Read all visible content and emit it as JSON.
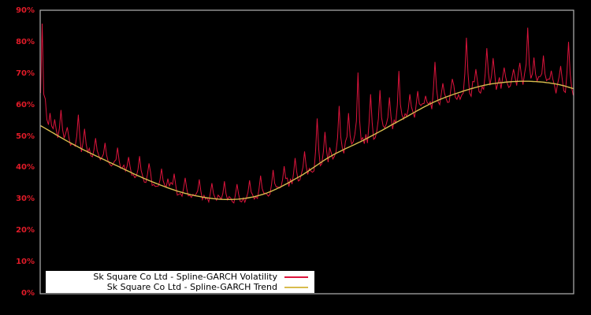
{
  "window": {
    "background_color": "#000000",
    "frame_color": "#b3b3b3"
  },
  "legend": {
    "background_color": "#ffffff",
    "items": [
      {
        "label": "Sk Square Co Ltd - Spline-GARCH Volatility",
        "color": "#dc143c"
      },
      {
        "label": "Sk Square Co Ltd - Spline-GARCH Trend",
        "color": "#d8bc4e"
      }
    ]
  },
  "chart_data": {
    "type": "line",
    "title": "",
    "xlabel": "",
    "ylabel": "",
    "x_axis": {
      "tick_labels": [],
      "range": [
        0,
        1
      ]
    },
    "y_axis": {
      "range": [
        0,
        90
      ],
      "unit": "%",
      "tick_color": "#e01b28",
      "ticks": [
        {
          "value": 0,
          "label": "0%"
        },
        {
          "value": 10,
          "label": "10%"
        },
        {
          "value": 20,
          "label": "20%"
        },
        {
          "value": 30,
          "label": "30%"
        },
        {
          "value": 40,
          "label": "40%"
        },
        {
          "value": 50,
          "label": "50%"
        },
        {
          "value": 60,
          "label": "60%"
        },
        {
          "value": 70,
          "label": "70%"
        },
        {
          "value": 80,
          "label": "80%"
        }
      ],
      "top_tick": {
        "value": 90,
        "label": "90%"
      }
    },
    "grid": "off",
    "legend_position": "bottom-left",
    "series": [
      {
        "name": "Sk Square Co Ltd - Spline-GARCH Volatility",
        "color": "#dc143c",
        "line_width": 1,
        "description": "Noisy daily volatility oscillating around the trend with frequent upward spikes; starts with a large spike near 86% and ends with spikes near 80%.",
        "noise": {
          "seed": 1337,
          "points": 340,
          "base_dev": 2.3,
          "right_dev_slope": 6.5,
          "right_dev_start": 0.52,
          "bump_prob": 0.1,
          "bias": 0.58,
          "floor_below_trend": 3.2,
          "min_value": 27.0,
          "max_value": 87.0
        },
        "spikes": [
          [
            0.0015,
            86.0
          ],
          [
            0.009,
            62.0
          ],
          [
            0.018,
            57.5
          ],
          [
            0.028,
            55.5
          ],
          [
            0.037,
            58.5
          ],
          [
            0.049,
            53.0
          ],
          [
            0.072,
            57.0
          ],
          [
            0.084,
            52.5
          ],
          [
            0.102,
            49.5
          ],
          [
            0.121,
            48.0
          ],
          [
            0.146,
            46.5
          ],
          [
            0.165,
            43.5
          ],
          [
            0.185,
            43.8
          ],
          [
            0.205,
            41.5
          ],
          [
            0.228,
            39.8
          ],
          [
            0.25,
            38.2
          ],
          [
            0.272,
            36.9
          ],
          [
            0.297,
            36.4
          ],
          [
            0.321,
            35.2
          ],
          [
            0.344,
            35.8
          ],
          [
            0.368,
            34.9
          ],
          [
            0.391,
            36.1
          ],
          [
            0.414,
            37.6
          ],
          [
            0.437,
            39.4
          ],
          [
            0.458,
            40.6
          ],
          [
            0.477,
            43.2
          ],
          [
            0.496,
            45.3
          ],
          [
            0.518,
            55.8
          ],
          [
            0.535,
            51.5
          ],
          [
            0.56,
            59.8
          ],
          [
            0.579,
            57.5
          ],
          [
            0.597,
            70.4
          ],
          [
            0.619,
            63.5
          ],
          [
            0.637,
            64.8
          ],
          [
            0.654,
            62.5
          ],
          [
            0.674,
            70.9
          ],
          [
            0.693,
            63.5
          ],
          [
            0.709,
            64.5
          ],
          [
            0.724,
            63.0
          ],
          [
            0.74,
            73.8
          ],
          [
            0.756,
            67.0
          ],
          [
            0.774,
            68.4
          ],
          [
            0.799,
            81.5
          ],
          [
            0.818,
            71.5
          ],
          [
            0.838,
            78.2
          ],
          [
            0.849,
            75.0
          ],
          [
            0.87,
            72.0
          ],
          [
            0.888,
            71.5
          ],
          [
            0.901,
            73.5
          ],
          [
            0.913,
            84.7
          ],
          [
            0.926,
            75.2
          ],
          [
            0.944,
            75.8
          ],
          [
            0.959,
            71.0
          ],
          [
            0.976,
            72.5
          ],
          [
            0.991,
            80.2
          ]
        ]
      },
      {
        "name": "Sk Square Co Ltd - Spline-GARCH Trend",
        "color": "#d8bc4e",
        "line_width": 1.4,
        "description": "Smooth spline trend: falls from ~53.5% to a ~30% minimum about a third of the way across, rises to ~67.5% peak near the right, then eases to ~65%.",
        "points": [
          [
            0.0,
            53.5
          ],
          [
            0.065,
            47.2
          ],
          [
            0.14,
            41.0
          ],
          [
            0.21,
            35.6
          ],
          [
            0.28,
            31.6
          ],
          [
            0.355,
            30.0
          ],
          [
            0.42,
            31.8
          ],
          [
            0.486,
            37.3
          ],
          [
            0.545,
            43.8
          ],
          [
            0.611,
            49.3
          ],
          [
            0.678,
            55.5
          ],
          [
            0.737,
            60.9
          ],
          [
            0.79,
            64.3
          ],
          [
            0.84,
            66.6
          ],
          [
            0.895,
            67.6
          ],
          [
            0.94,
            67.4
          ],
          [
            0.975,
            66.5
          ],
          [
            1.0,
            65.3
          ]
        ]
      }
    ]
  }
}
